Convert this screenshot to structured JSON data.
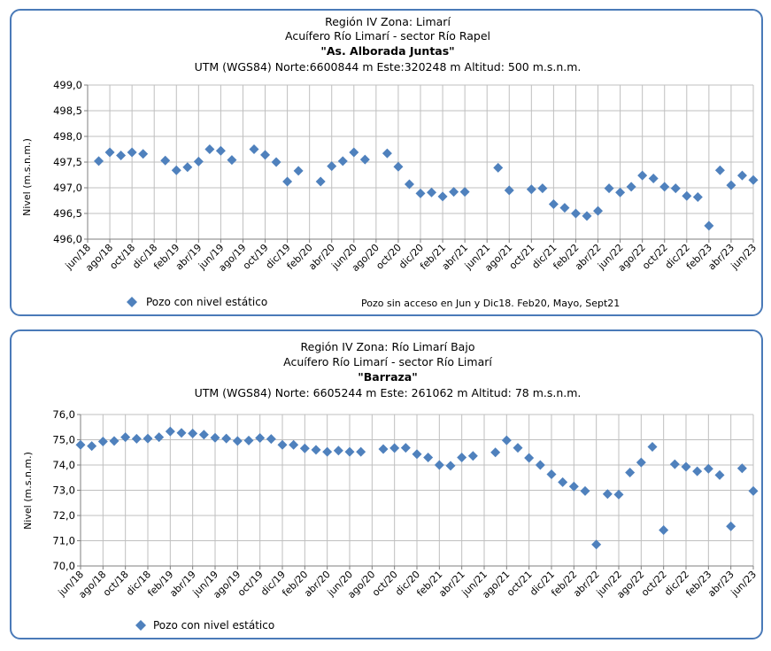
{
  "colors": {
    "marker": "#4f81bd",
    "border": "#4a7ab8",
    "grid": "#bfbfbf",
    "axis": "#7f7f7f"
  },
  "chart_data": [
    {
      "type": "scatter",
      "title_lines": [
        "Región IV  Zona: Limarí",
        "Acuífero Río Limarí - sector Río Rapel",
        "\"As. Alborada Juntas\"",
        "UTM (WGS84) Norte:6600844 m    Este:320248 m   Altitud: 500 m.s.n.m."
      ],
      "ylabel": "Nivel (m.s.n.m.)",
      "ylim": [
        496.0,
        499.0
      ],
      "yticks": [
        "496,0",
        "496,5",
        "497,0",
        "497,5",
        "498,0",
        "498,5",
        "499,0"
      ],
      "xlim": [
        "2018-06",
        "2023-06"
      ],
      "xticks": [
        "jun/18",
        "ago/18",
        "oct/18",
        "dic/18",
        "feb/19",
        "abr/19",
        "jun/19",
        "ago/19",
        "oct/19",
        "dic/19",
        "feb/20",
        "abr/20",
        "jun/20",
        "ago/20",
        "oct/20",
        "dic/20",
        "feb/21",
        "abr/21",
        "jun/21",
        "ago/21",
        "oct/21",
        "dic/21",
        "feb/22",
        "abr/22",
        "jun/22",
        "ago/22",
        "oct/22",
        "dic/22",
        "feb/23",
        "abr/23",
        "jun/23"
      ],
      "legend": "Pozo con nivel estático",
      "note": "Pozo sin acceso en Jun y Dic18. Feb20, Mayo, Sept21",
      "series": [
        {
          "name": "Pozo con nivel estático",
          "points": [
            [
              "2018-07",
              497.52
            ],
            [
              "2018-08",
              497.69
            ],
            [
              "2018-09",
              497.63
            ],
            [
              "2018-10",
              497.69
            ],
            [
              "2018-11",
              497.66
            ],
            [
              "2019-01",
              497.53
            ],
            [
              "2019-02",
              497.34
            ],
            [
              "2019-03",
              497.4
            ],
            [
              "2019-04",
              497.51
            ],
            [
              "2019-05",
              497.75
            ],
            [
              "2019-06",
              497.72
            ],
            [
              "2019-07",
              497.54
            ],
            [
              "2019-09",
              497.75
            ],
            [
              "2019-10",
              497.64
            ],
            [
              "2019-11",
              497.5
            ],
            [
              "2019-12",
              497.12
            ],
            [
              "2020-01",
              497.33
            ],
            [
              "2020-03",
              497.12
            ],
            [
              "2020-04",
              497.42
            ],
            [
              "2020-05",
              497.52
            ],
            [
              "2020-06",
              497.69
            ],
            [
              "2020-07",
              497.55
            ],
            [
              "2020-09",
              497.67
            ],
            [
              "2020-10",
              497.41
            ],
            [
              "2020-11",
              497.07
            ],
            [
              "2020-12",
              496.89
            ],
            [
              "2021-01",
              496.91
            ],
            [
              "2021-02",
              496.83
            ],
            [
              "2021-03",
              496.92
            ],
            [
              "2021-04",
              496.92
            ],
            [
              "2021-07",
              497.39
            ],
            [
              "2021-08",
              496.95
            ],
            [
              "2021-10",
              496.97
            ],
            [
              "2021-11",
              496.99
            ],
            [
              "2021-12",
              496.68
            ],
            [
              "2022-01",
              496.61
            ],
            [
              "2022-02",
              496.5
            ],
            [
              "2022-03",
              496.45
            ],
            [
              "2022-04",
              496.55
            ],
            [
              "2022-05",
              496.99
            ],
            [
              "2022-06",
              496.91
            ],
            [
              "2022-07",
              497.02
            ],
            [
              "2022-08",
              497.24
            ],
            [
              "2022-09",
              497.18
            ],
            [
              "2022-10",
              497.02
            ],
            [
              "2022-11",
              496.99
            ],
            [
              "2022-12",
              496.84
            ],
            [
              "2023-01",
              496.82
            ],
            [
              "2023-02",
              496.26
            ],
            [
              "2023-03",
              497.34
            ],
            [
              "2023-04",
              497.05
            ],
            [
              "2023-05",
              497.24
            ],
            [
              "2023-06",
              497.15
            ]
          ]
        }
      ]
    },
    {
      "type": "scatter",
      "title_lines": [
        "Región IV  Zona: Río Limarí Bajo",
        "Acuífero Río Limarí - sector Río Limarí",
        "\"Barraza\"",
        "UTM (WGS84) Norte: 6605244 m   Este: 261062 m   Altitud: 78 m.s.n.m."
      ],
      "ylabel": "Nivel (m.s.n.m.)",
      "ylim": [
        70.0,
        76.0
      ],
      "yticks": [
        "70,0",
        "71,0",
        "72,0",
        "73,0",
        "74,0",
        "75,0",
        "76,0"
      ],
      "xlim": [
        "2018-06",
        "2023-06"
      ],
      "xticks": [
        "jun/18",
        "ago/18",
        "oct/18",
        "dic/18",
        "feb/19",
        "abr/19",
        "jun/19",
        "ago/19",
        "oct/19",
        "dic/19",
        "feb/20",
        "abr/20",
        "jun/20",
        "ago/20",
        "oct/20",
        "dic/20",
        "feb/21",
        "abr/21",
        "jun/21",
        "ago/21",
        "oct/21",
        "dic/21",
        "feb/22",
        "abr/22",
        "jun/22",
        "ago/22",
        "oct/22",
        "dic/22",
        "feb/23",
        "abr/23",
        "jun/23"
      ],
      "legend": "Pozo con nivel estático",
      "series": [
        {
          "name": "Pozo con nivel estático",
          "points": [
            [
              "2018-06",
              74.8
            ],
            [
              "2018-07",
              74.75
            ],
            [
              "2018-08",
              74.93
            ],
            [
              "2018-09",
              74.95
            ],
            [
              "2018-10",
              75.1
            ],
            [
              "2018-11",
              75.04
            ],
            [
              "2018-12",
              75.05
            ],
            [
              "2019-01",
              75.1
            ],
            [
              "2019-02",
              75.33
            ],
            [
              "2019-03",
              75.27
            ],
            [
              "2019-04",
              75.25
            ],
            [
              "2019-05",
              75.2
            ],
            [
              "2019-06",
              75.08
            ],
            [
              "2019-07",
              75.05
            ],
            [
              "2019-08",
              74.95
            ],
            [
              "2019-09",
              74.97
            ],
            [
              "2019-10",
              75.07
            ],
            [
              "2019-11",
              75.03
            ],
            [
              "2019-12",
              74.8
            ],
            [
              "2020-01",
              74.8
            ],
            [
              "2020-02",
              74.66
            ],
            [
              "2020-03",
              74.6
            ],
            [
              "2020-04",
              74.52
            ],
            [
              "2020-05",
              74.57
            ],
            [
              "2020-06",
              74.52
            ],
            [
              "2020-07",
              74.52
            ],
            [
              "2020-09",
              74.63
            ],
            [
              "2020-10",
              74.67
            ],
            [
              "2020-11",
              74.68
            ],
            [
              "2020-12",
              74.43
            ],
            [
              "2021-01",
              74.3
            ],
            [
              "2021-02",
              74.0
            ],
            [
              "2021-03",
              73.97
            ],
            [
              "2021-04",
              74.3
            ],
            [
              "2021-05",
              74.36
            ],
            [
              "2021-07",
              74.5
            ],
            [
              "2021-08",
              74.98
            ],
            [
              "2021-09",
              74.68
            ],
            [
              "2021-10",
              74.28
            ],
            [
              "2021-11",
              74.0
            ],
            [
              "2021-12",
              73.63
            ],
            [
              "2022-01",
              73.32
            ],
            [
              "2022-02",
              73.15
            ],
            [
              "2022-03",
              72.97
            ],
            [
              "2022-04",
              70.85
            ],
            [
              "2022-05",
              72.85
            ],
            [
              "2022-06",
              72.83
            ],
            [
              "2022-07",
              73.7
            ],
            [
              "2022-08",
              74.1
            ],
            [
              "2022-09",
              74.72
            ],
            [
              "2022-10",
              71.42
            ],
            [
              "2022-11",
              74.03
            ],
            [
              "2022-12",
              73.93
            ],
            [
              "2023-01",
              73.75
            ],
            [
              "2023-02",
              73.85
            ],
            [
              "2023-03",
              73.6
            ],
            [
              "2023-04",
              71.57
            ],
            [
              "2023-05",
              73.87
            ],
            [
              "2023-06",
              72.97
            ]
          ]
        }
      ]
    }
  ]
}
